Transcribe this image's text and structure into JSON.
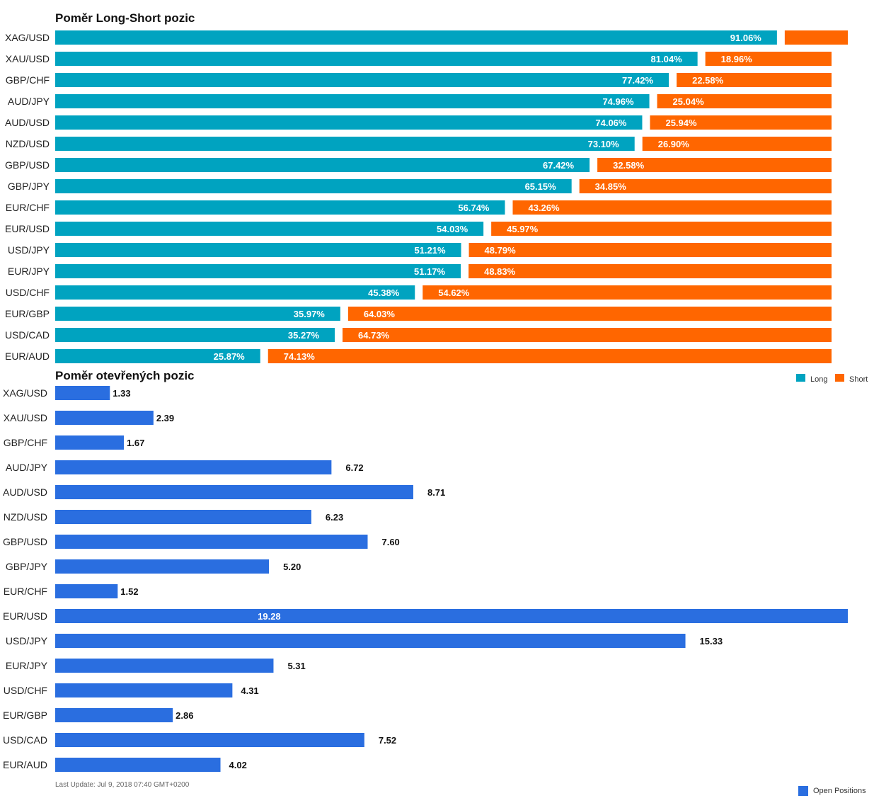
{
  "colors": {
    "long": "#00a3c0",
    "short": "#ff6600",
    "open": "#2a6ee0"
  },
  "chart_data": [
    {
      "type": "bar",
      "orientation": "horizontal",
      "stacked": true,
      "title": "Poměr Long-Short pozic",
      "categories": [
        "XAG/USD",
        "XAU/USD",
        "GBP/CHF",
        "AUD/JPY",
        "AUD/USD",
        "NZD/USD",
        "GBP/USD",
        "GBP/JPY",
        "EUR/CHF",
        "EUR/USD",
        "USD/JPY",
        "EUR/JPY",
        "USD/CHF",
        "EUR/GBP",
        "USD/CAD",
        "EUR/AUD"
      ],
      "series": [
        {
          "name": "Long",
          "values": [
            91.06,
            81.04,
            77.42,
            74.96,
            74.06,
            73.1,
            67.42,
            65.15,
            56.74,
            54.03,
            51.21,
            51.17,
            45.38,
            35.97,
            35.27,
            25.87
          ],
          "labels": [
            "91.06%",
            "81.04%",
            "77.42%",
            "74.96%",
            "74.06%",
            "73.10%",
            "67.42%",
            "65.15%",
            "56.74%",
            "54.03%",
            "51.21%",
            "51.17%",
            "45.38%",
            "35.97%",
            "35.27%",
            "25.87%"
          ]
        },
        {
          "name": "Short",
          "values": [
            8.94,
            18.96,
            22.58,
            25.04,
            25.94,
            26.9,
            32.58,
            34.85,
            43.26,
            45.97,
            48.79,
            48.83,
            54.62,
            64.03,
            64.73,
            74.13
          ],
          "labels": [
            "",
            "18.96%",
            "22.58%",
            "25.04%",
            "25.94%",
            "26.90%",
            "32.58%",
            "34.85%",
            "43.26%",
            "45.97%",
            "48.79%",
            "48.83%",
            "54.62%",
            "64.03%",
            "64.73%",
            "74.13%"
          ]
        }
      ],
      "xlim": [
        0,
        100
      ],
      "grid": false,
      "legend": "bottom-right"
    },
    {
      "type": "bar",
      "orientation": "horizontal",
      "title": "Poměr otevřených pozic",
      "categories": [
        "XAG/USD",
        "XAU/USD",
        "GBP/CHF",
        "AUD/JPY",
        "AUD/USD",
        "NZD/USD",
        "GBP/USD",
        "GBP/JPY",
        "EUR/CHF",
        "EUR/USD",
        "USD/JPY",
        "EUR/JPY",
        "USD/CHF",
        "EUR/GBP",
        "USD/CAD",
        "EUR/AUD"
      ],
      "series": [
        {
          "name": "Open Positions",
          "values": [
            1.33,
            2.39,
            1.67,
            6.72,
            8.71,
            6.23,
            7.6,
            5.2,
            1.52,
            19.28,
            15.33,
            5.31,
            4.31,
            2.86,
            7.52,
            4.02
          ],
          "labels": [
            "1.33",
            "2.39",
            "1.67",
            "6.72",
            "8.71",
            "6.23",
            "7.60",
            "5.20",
            "1.52",
            "19.28",
            "15.33",
            "5.31",
            "4.31",
            "2.86",
            "7.52",
            "4.02"
          ]
        }
      ],
      "xlim": [
        0,
        19.28
      ],
      "grid": false,
      "legend": "bottom-right"
    }
  ],
  "footer": {
    "last_update": "Last Update: Jul 9, 2018 07:40 GMT+0200"
  }
}
